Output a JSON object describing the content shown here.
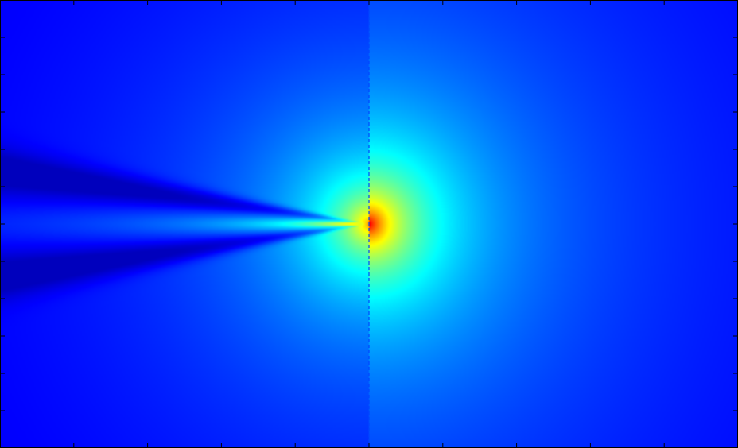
{
  "chart_data": {
    "type": "heatmap",
    "title": "",
    "xlabel": "",
    "ylabel": "",
    "colormap": "jet",
    "colorbar": false,
    "grid": false,
    "source": {
      "x": 0,
      "y": 0
    },
    "xlim": [
      -0.5,
      0.5
    ],
    "ylim": [
      -0.3,
      0.3
    ],
    "x_ticks": [
      -0.4,
      -0.3,
      -0.2,
      -0.1,
      0,
      0.1,
      0.2,
      0.3,
      0.4
    ],
    "y_ticks": [
      -0.25,
      -0.2,
      -0.15,
      -0.1,
      -0.05,
      0,
      0.05,
      0.1,
      0.15,
      0.2,
      0.25
    ],
    "x_tick_labels_visible": false,
    "y_tick_labels_visible": false,
    "dashed_line": {
      "orientation": "vertical",
      "x": 0,
      "color": "#0044ff"
    },
    "peak_color": "#ff0000",
    "background_color": "#00008c",
    "frame_color": "#000000"
  }
}
